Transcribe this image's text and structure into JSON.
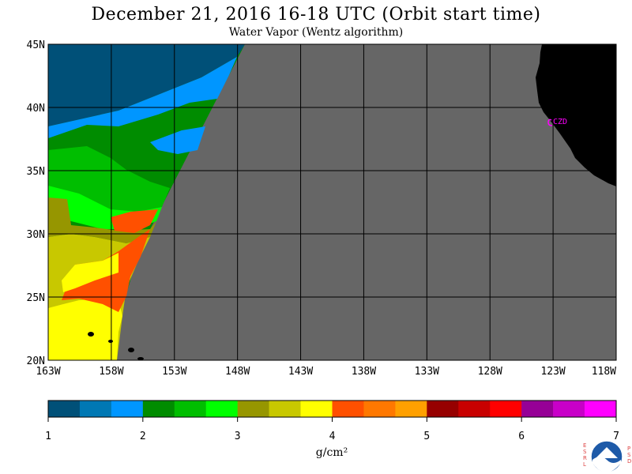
{
  "header": {
    "title": "December 21, 2016  16-18 UTC  (Orbit start time)",
    "subtitle": "Water Vapor (Wentz algorithm)"
  },
  "map": {
    "lat_labels": [
      "45N",
      "40N",
      "35N",
      "30N",
      "25N",
      "20N"
    ],
    "lon_labels": [
      "163W",
      "158W",
      "153W",
      "148W",
      "143W",
      "138W",
      "133W",
      "128W",
      "123W",
      "118W"
    ],
    "station_label": "CZD",
    "colors": {
      "no_data": "#666666",
      "land": "#000000",
      "grid": "#000000",
      "station": "#ff00ff"
    }
  },
  "colorbar": {
    "tick_labels": [
      "1",
      "2",
      "3",
      "4",
      "5",
      "6",
      "7"
    ],
    "units": "g/cm²",
    "colors": [
      "#005078",
      "#0078b4",
      "#0096ff",
      "#008c00",
      "#00be00",
      "#00ff00",
      "#969600",
      "#c8c800",
      "#ffff00",
      "#ff5000",
      "#ff7800",
      "#ffa000",
      "#960000",
      "#c80000",
      "#ff0000",
      "#960096",
      "#c800c8",
      "#ff00ff"
    ]
  },
  "logo": {
    "name": "NOAA",
    "left_letters": [
      "E",
      "S",
      "R",
      "L"
    ],
    "right_letters": [
      "P",
      "S",
      "D"
    ]
  }
}
